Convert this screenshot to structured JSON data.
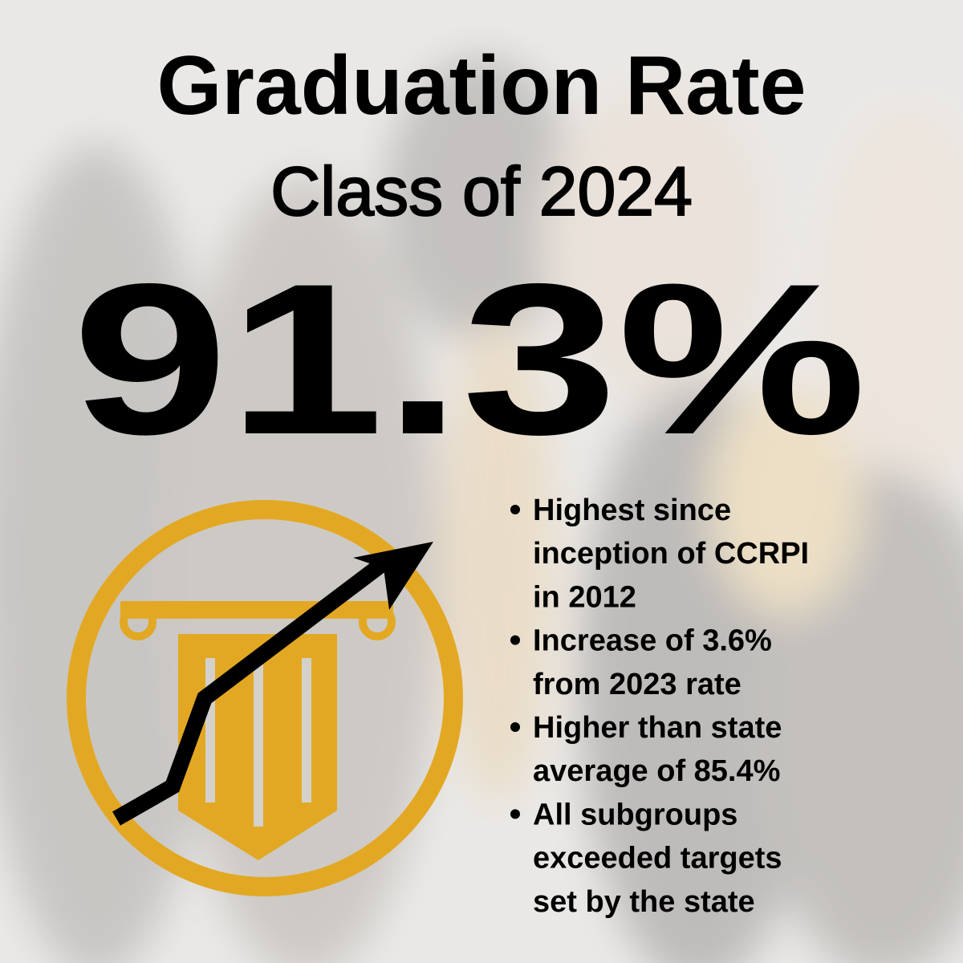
{
  "header": {
    "title": "Graduation Rate",
    "subtitle": "Class of 2024"
  },
  "stat": "91.3%",
  "bullets": [
    {
      "lines": [
        "Highest since",
        "inception of CCRPI",
        "in 2012"
      ]
    },
    {
      "lines": [
        "Increase of 3.6%",
        "from 2023 rate"
      ]
    },
    {
      "lines": [
        "Higher than state",
        "average of 85.4%"
      ]
    },
    {
      "lines": [
        "All subgroups",
        "exceeded targets",
        "set by the state"
      ]
    }
  ]
}
